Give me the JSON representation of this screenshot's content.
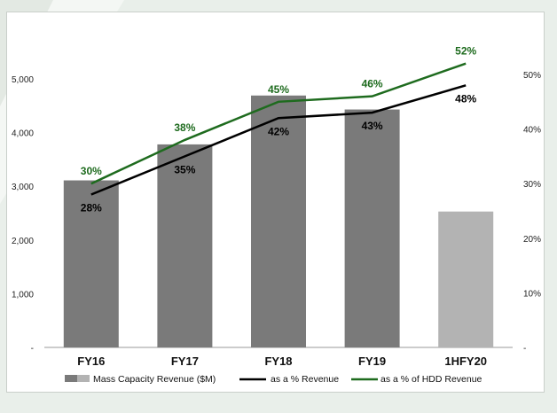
{
  "chart_data": {
    "type": "bar",
    "categories": [
      "FY16",
      "FY17",
      "FY18",
      "FY19",
      "1HFY20"
    ],
    "series": [
      {
        "name": "Mass Capacity Revenue ($M)",
        "type": "bar",
        "axis": "left",
        "values": [
          3110,
          3780,
          4690,
          4430,
          2530
        ],
        "colors": [
          "#7a7a7a",
          "#7a7a7a",
          "#7a7a7a",
          "#7a7a7a",
          "#b3b3b3"
        ]
      },
      {
        "name": "as a % Revenue",
        "type": "line",
        "axis": "right",
        "values": [
          28,
          35,
          42,
          43,
          48
        ],
        "data_labels": [
          "28%",
          "35%",
          "42%",
          "43%",
          "48%"
        ],
        "color": "#000000"
      },
      {
        "name": "as a % of HDD Revenue",
        "type": "line",
        "axis": "right",
        "values": [
          30,
          38,
          45,
          46,
          52
        ],
        "data_labels": [
          "30%",
          "38%",
          "45%",
          "46%",
          "52%"
        ],
        "color": "#1e6b1e"
      }
    ],
    "y_left": {
      "ylim": [
        0,
        5000
      ],
      "ticks": [
        0,
        1000,
        2000,
        3000,
        4000,
        5000
      ],
      "tick_labels": [
        "-",
        "1,000",
        "2,000",
        "3,000",
        "4,000",
        "5,000"
      ]
    },
    "y_right": {
      "ylim": [
        0,
        50
      ],
      "ticks": [
        0,
        10,
        20,
        30,
        40,
        50
      ],
      "tick_labels": [
        "-",
        "10%",
        "20%",
        "30%",
        "40%",
        "50%"
      ]
    },
    "grid": false,
    "legend": "bottom",
    "legend_entries": [
      "Mass Capacity Revenue ($M)",
      "as a % Revenue",
      "as a % of HDD Revenue"
    ]
  }
}
